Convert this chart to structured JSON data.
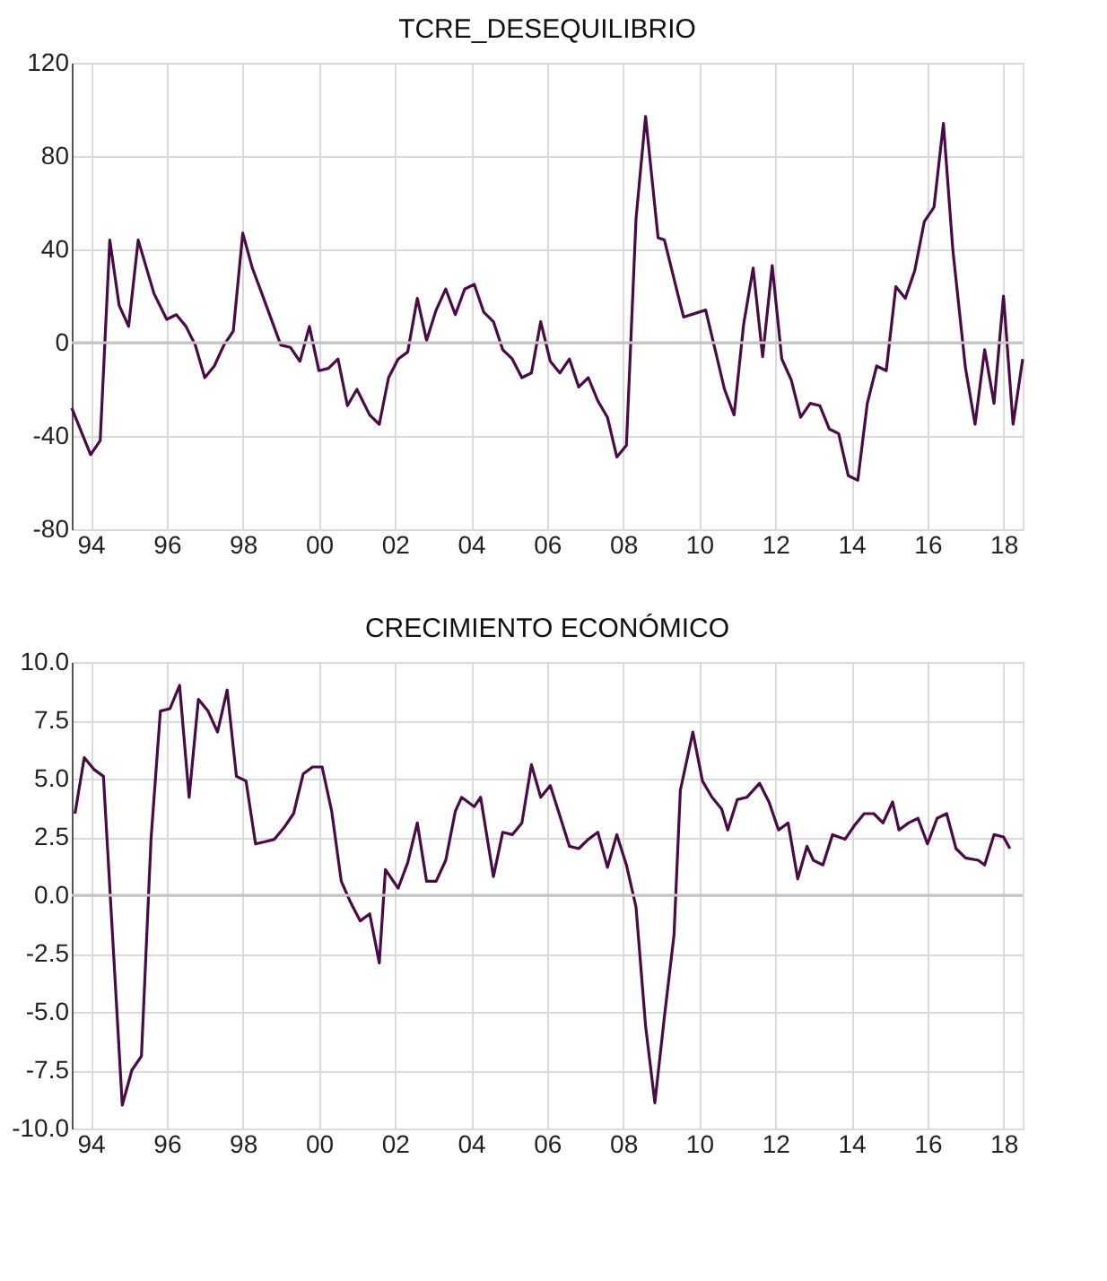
{
  "chart_data": [
    {
      "type": "line",
      "title": "TCRE_DESEQUILIBRIO",
      "x": [
        "1994-01",
        "1994-07",
        "1994-10",
        "1995-01",
        "1995-04",
        "1995-07",
        "1995-10",
        "1996-03",
        "1996-07",
        "1996-10",
        "1997-01",
        "1997-04",
        "1997-07",
        "1997-10",
        "1998-01",
        "1998-04",
        "1998-07",
        "1998-10",
        "1999-01",
        "1999-07",
        "1999-10",
        "2000-01",
        "2000-04",
        "2000-07",
        "2000-10",
        "2001-01",
        "2001-04",
        "2001-07",
        "2001-11",
        "2002-02",
        "2002-05",
        "2002-08",
        "2002-11",
        "2003-02",
        "2003-05",
        "2003-08",
        "2003-11",
        "2004-02",
        "2004-05",
        "2004-08",
        "2004-11",
        "2005-02",
        "2005-05",
        "2005-08",
        "2005-11",
        "2006-02",
        "2006-05",
        "2006-08",
        "2006-11",
        "2007-02",
        "2007-05",
        "2007-08",
        "2007-11",
        "2008-02",
        "2008-05",
        "2008-08",
        "2008-11",
        "2009-02",
        "2009-06",
        "2009-08",
        "2009-12",
        "2010-02",
        "2010-09",
        "2010-12",
        "2011-03",
        "2011-06",
        "2011-09",
        "2011-12",
        "2012-03",
        "2012-06",
        "2012-09",
        "2012-12",
        "2013-03",
        "2013-06",
        "2013-09",
        "2013-12",
        "2014-03",
        "2014-06",
        "2014-09",
        "2014-12",
        "2015-03",
        "2015-06",
        "2015-09",
        "2015-12",
        "2016-03",
        "2016-06",
        "2016-09",
        "2016-12",
        "2017-03",
        "2017-07",
        "2017-10",
        "2018-01",
        "2018-04",
        "2018-07",
        "2018-10",
        "2019-01"
      ],
      "series": [
        {
          "color": "#4a0a45",
          "values": [
            -28,
            -48,
            -42,
            44,
            16,
            7,
            44,
            21,
            10,
            12,
            7,
            -1,
            -15,
            -10,
            -1,
            5,
            47,
            32,
            21,
            -1,
            -2,
            -8,
            7,
            -12,
            -11,
            -7,
            -27,
            -20,
            -31,
            -35,
            -15,
            -7,
            -4,
            19,
            1,
            14,
            23,
            12,
            23,
            25,
            13,
            9,
            -3,
            -7,
            -15,
            -13,
            9,
            -8,
            -13,
            -7,
            -19,
            -15,
            -25,
            -32,
            -49,
            -44,
            53,
            97,
            45,
            44,
            22,
            11,
            14,
            -3,
            -20,
            -31,
            8,
            32,
            -6,
            33,
            -7,
            -16,
            -32,
            -26,
            -27,
            -37,
            -39,
            -57,
            -59,
            -26,
            -10,
            -12,
            24,
            19,
            31,
            52,
            58,
            94,
            40,
            -11,
            -35,
            -3,
            -26,
            20,
            -35,
            -7
          ]
        }
      ],
      "xlim": [
        "1994-01",
        "2019-01"
      ],
      "xticks": [
        {
          "value": "1994-07",
          "label": "94"
        },
        {
          "value": "1996-07",
          "label": "96"
        },
        {
          "value": "1998-07",
          "label": "98"
        },
        {
          "value": "2000-07",
          "label": "00"
        },
        {
          "value": "2002-07",
          "label": "02"
        },
        {
          "value": "2004-07",
          "label": "04"
        },
        {
          "value": "2006-07",
          "label": "06"
        },
        {
          "value": "2008-07",
          "label": "08"
        },
        {
          "value": "2010-07",
          "label": "10"
        },
        {
          "value": "2012-07",
          "label": "12"
        },
        {
          "value": "2014-07",
          "label": "14"
        },
        {
          "value": "2016-07",
          "label": "16"
        },
        {
          "value": "2018-07",
          "label": "18"
        }
      ],
      "ylim": [
        -80,
        120
      ],
      "yticks": [
        -80,
        -40,
        0,
        40,
        80,
        120
      ],
      "ref_lines": [
        {
          "axis": "y",
          "value": 0,
          "color": "#c4c4c4"
        }
      ],
      "grid": true
    },
    {
      "type": "line",
      "title": "CRECIMIENTO ECONÓMICO",
      "x": [
        "1994-02",
        "1994-05",
        "1994-08",
        "1994-11",
        "1995-05",
        "1995-08",
        "1995-11",
        "1996-02",
        "1996-05",
        "1996-08",
        "1996-11",
        "1997-02",
        "1997-05",
        "1997-08",
        "1997-11",
        "1998-02",
        "1998-05",
        "1998-08",
        "1998-11",
        "1999-02",
        "1999-05",
        "1999-08",
        "1999-11",
        "2000-02",
        "2000-05",
        "2000-08",
        "2000-11",
        "2001-02",
        "2001-05",
        "2001-08",
        "2001-11",
        "2002-02",
        "2002-04",
        "2002-08",
        "2002-11",
        "2003-02",
        "2003-05",
        "2003-08",
        "2003-11",
        "2004-02",
        "2004-04",
        "2004-08",
        "2004-10",
        "2005-02",
        "2005-05",
        "2005-08",
        "2005-11",
        "2006-02",
        "2006-05",
        "2006-08",
        "2006-11",
        "2007-02",
        "2007-05",
        "2007-08",
        "2007-11",
        "2008-02",
        "2008-05",
        "2008-08",
        "2008-11",
        "2009-02",
        "2009-05",
        "2009-08",
        "2009-11",
        "2010-01",
        "2010-05",
        "2010-08",
        "2010-11",
        "2011-02",
        "2011-04",
        "2011-07",
        "2011-10",
        "2012-02",
        "2012-05",
        "2012-08",
        "2012-11",
        "2013-02",
        "2013-05",
        "2013-07",
        "2013-10",
        "2014-01",
        "2014-05",
        "2014-08",
        "2014-11",
        "2015-02",
        "2015-05",
        "2015-08",
        "2015-10",
        "2016-01",
        "2016-04",
        "2016-07",
        "2016-10",
        "2017-01",
        "2017-04",
        "2017-07",
        "2017-11",
        "2018-01",
        "2018-04",
        "2018-07",
        "2018-09"
      ],
      "series": [
        {
          "color": "#4a0a45",
          "values": [
            3.5,
            5.9,
            5.4,
            5.1,
            -9.0,
            -7.5,
            -6.9,
            2.4,
            7.9,
            8.0,
            9.0,
            4.2,
            8.4,
            7.9,
            7.0,
            8.8,
            5.1,
            4.9,
            2.2,
            2.3,
            2.4,
            2.9,
            3.5,
            5.2,
            5.5,
            5.5,
            3.6,
            0.6,
            -0.3,
            -1.1,
            -0.8,
            -2.9,
            1.1,
            0.3,
            1.4,
            3.1,
            0.6,
            0.6,
            1.5,
            3.6,
            4.2,
            3.8,
            4.2,
            0.8,
            2.7,
            2.6,
            3.1,
            5.6,
            4.2,
            4.7,
            3.4,
            2.1,
            2.0,
            2.4,
            2.7,
            1.2,
            2.6,
            1.3,
            -0.5,
            -5.6,
            -8.9,
            -5.2,
            -1.7,
            4.5,
            7.0,
            4.9,
            4.2,
            3.7,
            2.8,
            4.1,
            4.2,
            4.8,
            4.0,
            2.8,
            3.1,
            0.7,
            2.1,
            1.5,
            1.3,
            2.6,
            2.4,
            3.0,
            3.5,
            3.5,
            3.1,
            4.0,
            2.8,
            3.1,
            3.3,
            2.2,
            3.3,
            3.5,
            2.0,
            1.6,
            1.5,
            1.3,
            2.6,
            2.5,
            2.0
          ]
        }
      ],
      "xlim": [
        "1994-01",
        "2019-01"
      ],
      "xticks": [
        {
          "value": "1994-07",
          "label": "94"
        },
        {
          "value": "1996-07",
          "label": "96"
        },
        {
          "value": "1998-07",
          "label": "98"
        },
        {
          "value": "2000-07",
          "label": "00"
        },
        {
          "value": "2002-07",
          "label": "02"
        },
        {
          "value": "2004-07",
          "label": "04"
        },
        {
          "value": "2006-07",
          "label": "06"
        },
        {
          "value": "2008-07",
          "label": "08"
        },
        {
          "value": "2010-07",
          "label": "10"
        },
        {
          "value": "2012-07",
          "label": "12"
        },
        {
          "value": "2014-07",
          "label": "14"
        },
        {
          "value": "2016-07",
          "label": "16"
        },
        {
          "value": "2018-07",
          "label": "18"
        }
      ],
      "ylim": [
        -10,
        10
      ],
      "yticks": [
        {
          "value": -10,
          "label": "-10.0"
        },
        {
          "value": -7.5,
          "label": "-7.5"
        },
        {
          "value": -5,
          "label": "-5.0"
        },
        {
          "value": -2.5,
          "label": "-2.5"
        },
        {
          "value": 0,
          "label": "0.0"
        },
        {
          "value": 2.5,
          "label": "2.5"
        },
        {
          "value": 5,
          "label": "5.0"
        },
        {
          "value": 7.5,
          "label": "7.5"
        },
        {
          "value": 10,
          "label": "10.0"
        }
      ],
      "ref_lines": [
        {
          "axis": "y",
          "value": 0,
          "color": "#c4c4c4"
        }
      ],
      "grid": true
    }
  ]
}
